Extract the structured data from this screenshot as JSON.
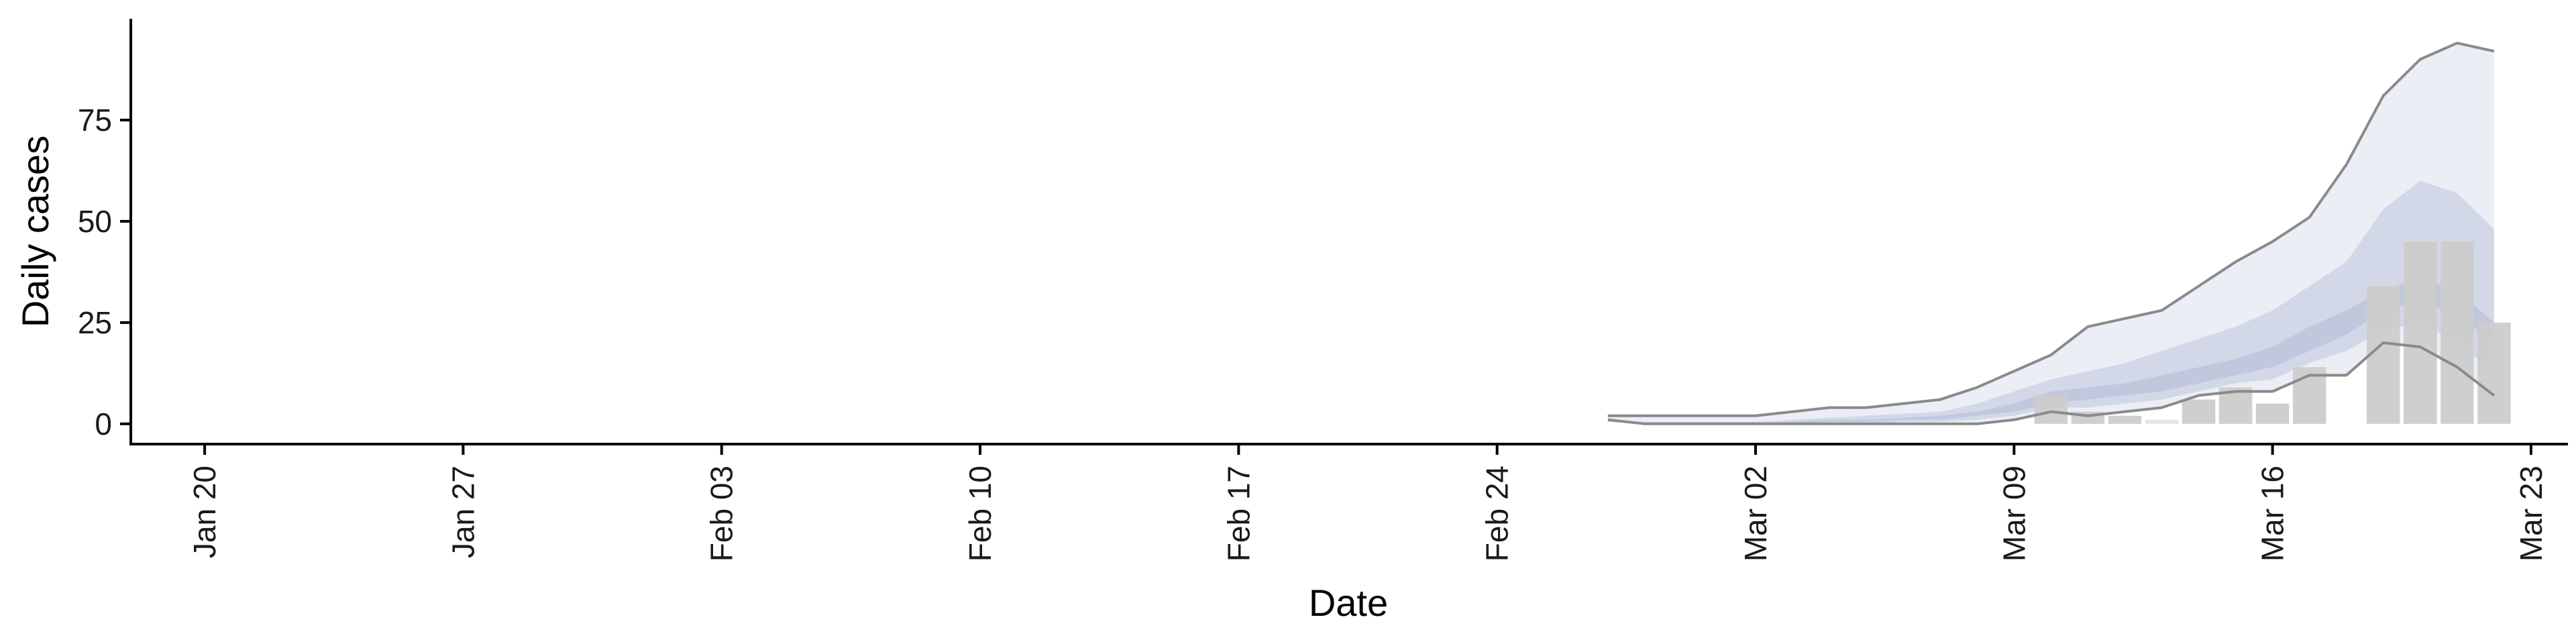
{
  "chart_data": {
    "type": "bar",
    "title": "",
    "xlabel": "Date",
    "ylabel": "Daily cases",
    "ylim": [
      -5,
      100
    ],
    "xlim": [
      "2020-01-18",
      "2020-03-24"
    ],
    "x_ticks": [
      "Jan 20",
      "Jan 27",
      "Feb 03",
      "Feb 10",
      "Feb 17",
      "Feb 24",
      "Mar 02",
      "Mar 09",
      "Mar 16",
      "Mar 23"
    ],
    "x_tick_dates": [
      "2020-01-20",
      "2020-01-27",
      "2020-02-03",
      "2020-02-10",
      "2020-02-17",
      "2020-02-24",
      "2020-03-02",
      "2020-03-09",
      "2020-03-16",
      "2020-03-23"
    ],
    "y_ticks": [
      0,
      25,
      50,
      75
    ],
    "grid": false,
    "colors": {
      "bars": "#cccccc",
      "bars_faded": "#e3e3e3",
      "band_outer": "#eceef6",
      "band_inner": "#d3d8e8",
      "band_core": "#c1c8de",
      "lines": "#8a8a8a",
      "axis": "#000000"
    },
    "reported_cases": {
      "dates": [
        "2020-03-10",
        "2020-03-11",
        "2020-03-12",
        "2020-03-13",
        "2020-03-14",
        "2020-03-15",
        "2020-03-16",
        "2020-03-17",
        "2020-03-19",
        "2020-03-20",
        "2020-03-21",
        "2020-03-22"
      ],
      "values": [
        7,
        3,
        2,
        1,
        6,
        9,
        5,
        14,
        34,
        45,
        45,
        25
      ],
      "faded": [
        false,
        false,
        false,
        true,
        false,
        false,
        false,
        false,
        false,
        false,
        false,
        false
      ]
    },
    "estimate": {
      "dates": [
        "2020-02-27",
        "2020-02-28",
        "2020-02-29",
        "2020-03-01",
        "2020-03-02",
        "2020-03-03",
        "2020-03-04",
        "2020-03-05",
        "2020-03-06",
        "2020-03-07",
        "2020-03-08",
        "2020-03-09",
        "2020-03-10",
        "2020-03-11",
        "2020-03-12",
        "2020-03-13",
        "2020-03-14",
        "2020-03-15",
        "2020-03-16",
        "2020-03-17",
        "2020-03-18",
        "2020-03-19",
        "2020-03-20",
        "2020-03-21",
        "2020-03-22"
      ],
      "upper_90": [
        2,
        2,
        2,
        2,
        2,
        3,
        4,
        4,
        5,
        6,
        9,
        13,
        17,
        24,
        26,
        28,
        34,
        40,
        45,
        51,
        64,
        81,
        90,
        94,
        92
      ],
      "upper_50": [
        1,
        0.5,
        0.5,
        0.5,
        0.5,
        1,
        1.5,
        2,
        2.5,
        3,
        5,
        8,
        11,
        13,
        15,
        18,
        21,
        24,
        28,
        34,
        40,
        53,
        60,
        57,
        48
      ],
      "upper_20": [
        0.5,
        0,
        0,
        0,
        0,
        0.5,
        1,
        1,
        1.5,
        2,
        3,
        5,
        8,
        9,
        10,
        12,
        14,
        16,
        19,
        24,
        28,
        33,
        36,
        33,
        25
      ],
      "lower_20": [
        0.5,
        0,
        0,
        0,
        0,
        0,
        0.5,
        0.5,
        1,
        1,
        2,
        3,
        5,
        6,
        7,
        8,
        10,
        12,
        14,
        18,
        22,
        28,
        30,
        27,
        20
      ],
      "lower_50": [
        0.5,
        0,
        0,
        0,
        0,
        0,
        0,
        0,
        0.5,
        0.5,
        1,
        2,
        4,
        4,
        5,
        6,
        8,
        10,
        11,
        15,
        18,
        23,
        25,
        20,
        13
      ],
      "lower_90": [
        1,
        0,
        0,
        0,
        0,
        0,
        0,
        0,
        0,
        0,
        0,
        1,
        3,
        2,
        3,
        4,
        7,
        8,
        8,
        12,
        12,
        20,
        19,
        14,
        7
      ]
    }
  }
}
